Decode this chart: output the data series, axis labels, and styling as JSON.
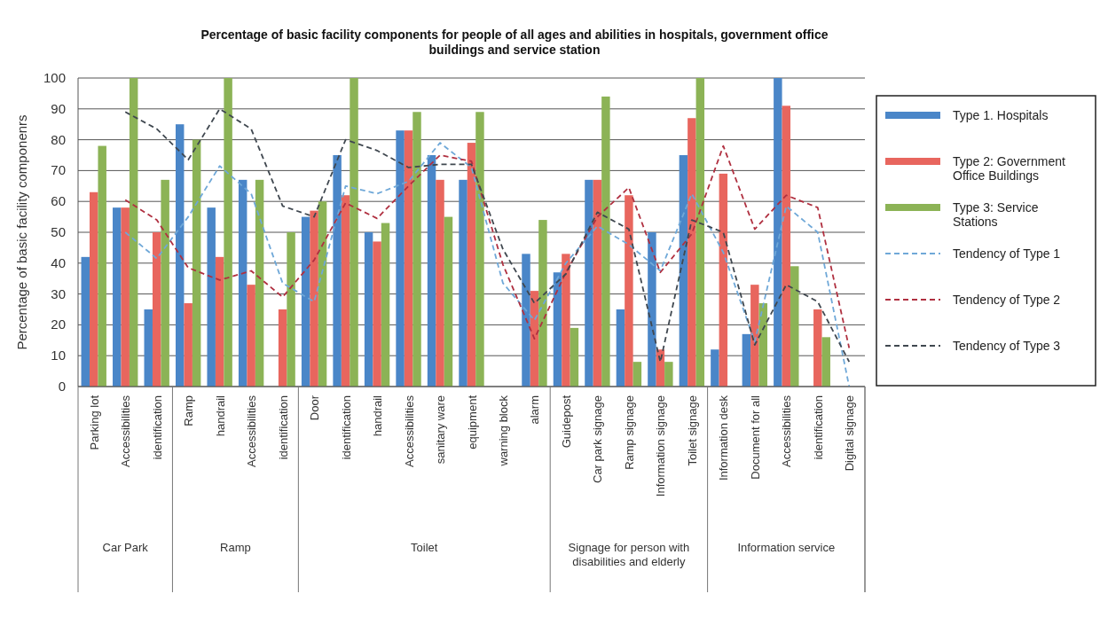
{
  "chart_data": {
    "type": "bar",
    "title": "Percentage of basic facility components for people of all  ages and abilities in hospitals, government office buildings and service station",
    "ylabel": "Percentage of basic facility componenrs",
    "categories": [
      "Parking lot",
      "Accessibilities",
      "identification",
      "Ramp",
      "handrail",
      "Accessibilities",
      "identification",
      "Door",
      "identification",
      "handrail",
      "Accessibilities",
      "sanitary ware",
      "equipment",
      "warning block",
      "alarm",
      "Guidepost",
      "Car park signage",
      "Ramp signage",
      "Information signage",
      "Toilet signage",
      "Information desk",
      "Document for all",
      "Accessibilities",
      "identification",
      "Digital signage"
    ],
    "annotations": [
      "Car Park",
      "Ramp",
      "Toilet",
      "Signage for person with disabilities and elderly",
      "Information service"
    ],
    "series": [
      {
        "name": "Type 1. Hospitals",
        "color": "#4a86c8",
        "values": [
          42,
          58,
          25,
          85,
          58,
          67,
          0,
          55,
          75,
          50,
          83,
          75,
          67,
          0,
          43,
          37,
          67,
          25,
          50,
          75,
          12,
          17,
          100,
          0,
          0
        ]
      },
      {
        "name": "Type 2: Government Office Buildings",
        "color": "#e8665e",
        "values": [
          63,
          58,
          50,
          27,
          42,
          33,
          25,
          57,
          62,
          47,
          83,
          67,
          79,
          0,
          31,
          43,
          67,
          62,
          12,
          87,
          69,
          33,
          91,
          25,
          0
        ]
      },
      {
        "name": "Type 3: Service Stations",
        "color": "#8cb356",
        "values": [
          78,
          100,
          67,
          80,
          100,
          67,
          50,
          60,
          100,
          53,
          89,
          55,
          89,
          0,
          54,
          19,
          94,
          8,
          8,
          100,
          0,
          27,
          39,
          16,
          0
        ]
      },
      {
        "name": "Tendency of Type 1",
        "type": "line",
        "line_style": "dashed",
        "color": "#6fa8d8",
        "values": [
          null,
          50,
          41.5,
          55,
          71.5,
          62.5,
          33.5,
          27.5,
          65,
          62.5,
          66.5,
          79,
          71,
          33.5,
          21.5,
          40,
          52,
          46,
          37.5,
          62.5,
          43.5,
          14.5,
          58.5,
          50,
          0
        ]
      },
      {
        "name": "Tendency of Type 2",
        "type": "line",
        "line_style": "dashed",
        "color": "#b03040",
        "values": [
          null,
          60.5,
          54,
          38.5,
          34.5,
          37.5,
          29,
          41,
          59.5,
          54.5,
          65,
          75,
          73,
          39.5,
          15.5,
          37,
          55,
          64.5,
          37,
          49.5,
          78,
          51,
          62,
          58,
          12.5
        ]
      },
      {
        "name": "Tendency of Type 3",
        "type": "line",
        "line_style": "dashed",
        "color": "#404850",
        "values": [
          null,
          89,
          83.5,
          73.5,
          90,
          83.5,
          58.5,
          55,
          80,
          76.5,
          71,
          72,
          72,
          44.5,
          27,
          36.5,
          56.5,
          51,
          8,
          54,
          50,
          13.5,
          33,
          27.5,
          8
        ]
      }
    ],
    "ylim": [
      0,
      100
    ],
    "yticks": [
      0,
      10,
      20,
      30,
      40,
      50,
      60,
      70,
      80,
      90,
      100
    ],
    "grid": "y",
    "legend": "right",
    "marker": "none"
  }
}
